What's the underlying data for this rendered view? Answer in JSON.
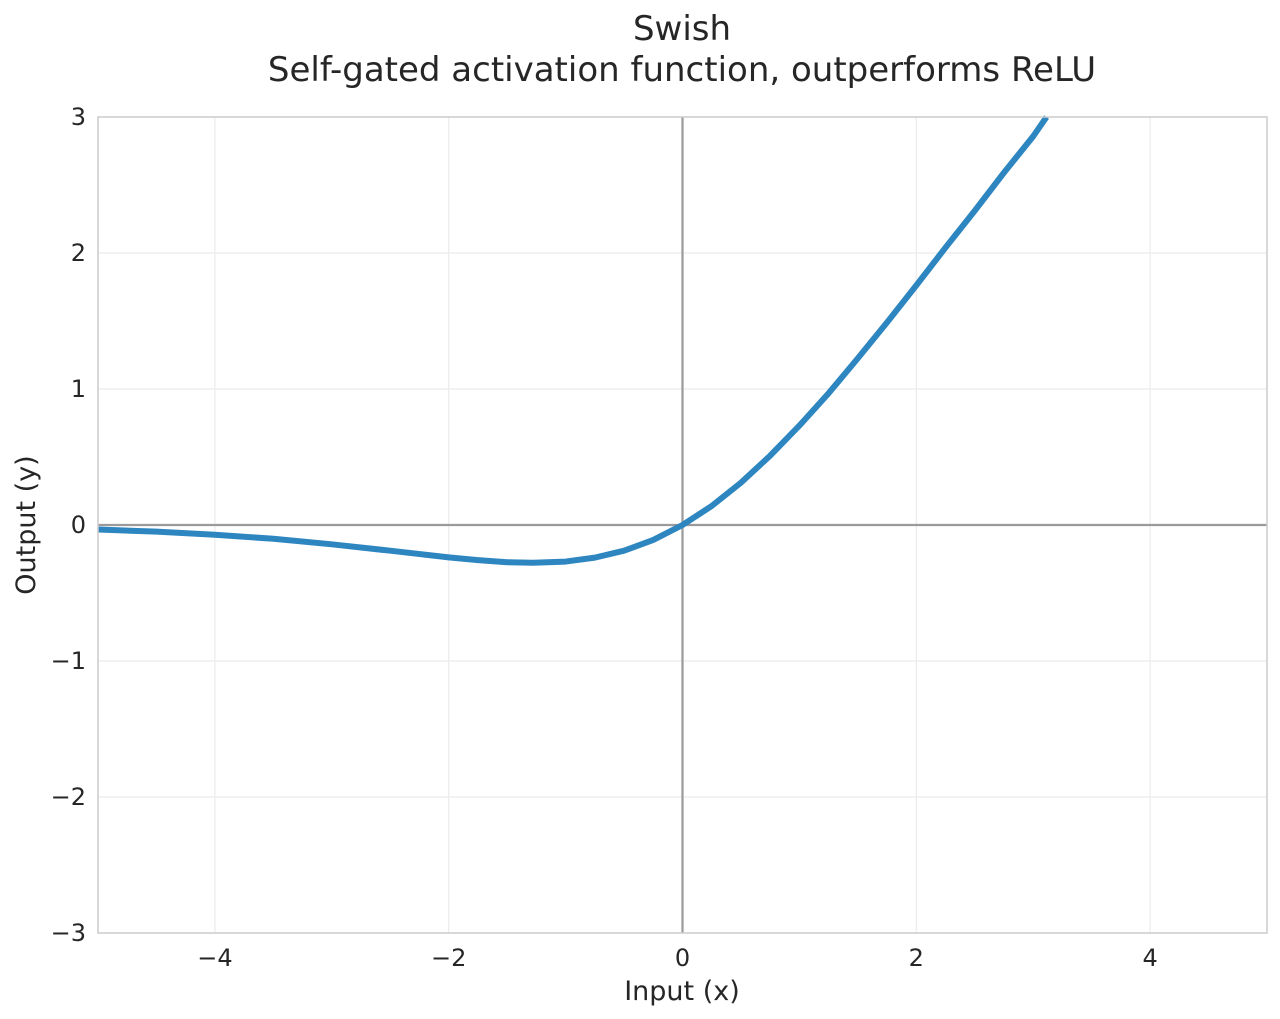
{
  "chart_data": {
    "type": "line",
    "title": "Swish",
    "subtitle": "Self-gated activation function, outperforms ReLU",
    "xlabel": "Input (x)",
    "ylabel": "Output (y)",
    "xlim": [
      -5,
      5
    ],
    "ylim": [
      -3,
      3
    ],
    "x_ticks": [
      -4,
      -2,
      0,
      2,
      4
    ],
    "x_tick_labels": [
      "−4",
      "−2",
      "0",
      "2",
      "4"
    ],
    "y_ticks": [
      -3,
      -2,
      -1,
      0,
      1,
      2,
      3
    ],
    "y_tick_labels": [
      "−3",
      "−2",
      "−1",
      "0",
      "1",
      "2",
      "3"
    ],
    "grid": true,
    "zero_lines": true,
    "series": [
      {
        "color": "#2e86c1",
        "x": [
          -5.0,
          -4.5,
          -4.0,
          -3.5,
          -3.0,
          -2.5,
          -2.0,
          -1.75,
          -1.5,
          -1.278,
          -1.0,
          -0.75,
          -0.5,
          -0.25,
          0.0,
          0.25,
          0.5,
          0.75,
          1.0,
          1.25,
          1.5,
          1.75,
          2.0,
          2.25,
          2.5,
          2.75,
          3.0,
          3.114
        ],
        "y": [
          -0.033,
          -0.049,
          -0.072,
          -0.101,
          -0.142,
          -0.189,
          -0.238,
          -0.258,
          -0.274,
          -0.278,
          -0.269,
          -0.24,
          -0.189,
          -0.11,
          0.0,
          0.14,
          0.311,
          0.51,
          0.731,
          0.969,
          1.226,
          1.49,
          1.762,
          2.04,
          2.311,
          2.591,
          2.858,
          3.0
        ]
      }
    ]
  }
}
